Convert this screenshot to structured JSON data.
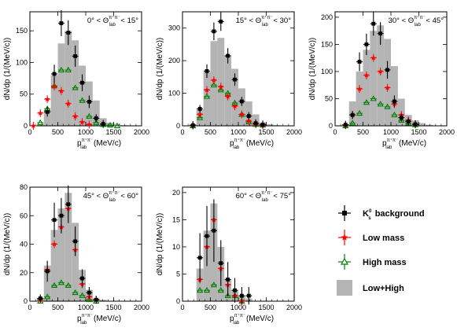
{
  "legend": [
    {
      "key": "ks",
      "label": "K",
      "sub": "s",
      "sup": "0",
      "rest": " background"
    },
    {
      "key": "low",
      "label": "Low mass"
    },
    {
      "key": "high",
      "label": "High mass"
    },
    {
      "key": "sum",
      "label": "Low+High"
    }
  ],
  "colors": {
    "ks": "#000000",
    "low": "#ff0000",
    "high": "#008000",
    "sum": "#b4b4b4"
  },
  "chart_data": [
    {
      "type": "bar",
      "cut": {
        "lo": "0°",
        "hi": "15°"
      },
      "ylabel": "dN/dp (1/(MeV/c))",
      "xlabel": {
        "p": "p",
        "sup": "π⁺π⁻",
        "sub": "lab",
        "unit": "(MeV/c)"
      },
      "xlim": [
        0,
        2000
      ],
      "ylim": [
        0,
        180
      ],
      "xticks": [
        0,
        500,
        1000,
        1500,
        2000
      ],
      "yticks": [
        0,
        50,
        100,
        150
      ],
      "bins": [
        125,
        250,
        375,
        500,
        625,
        750,
        875,
        1000,
        1125,
        1250,
        1375,
        1500,
        1625,
        1750
      ],
      "sum": [
        2,
        25,
        80,
        130,
        150,
        135,
        95,
        70,
        40,
        12,
        5,
        3,
        1
      ],
      "ks": [
        {
          "x": 312,
          "y": 22
        },
        {
          "x": 437,
          "y": 82
        },
        {
          "x": 562,
          "y": 162
        },
        {
          "x": 687,
          "y": 147
        },
        {
          "x": 812,
          "y": 110
        },
        {
          "x": 937,
          "y": 68
        },
        {
          "x": 1062,
          "y": 38
        },
        {
          "x": 1187,
          "y": 12
        },
        {
          "x": 1312,
          "y": 3
        }
      ],
      "low": [
        {
          "x": 62,
          "y": 0
        },
        {
          "x": 187,
          "y": 20
        },
        {
          "x": 312,
          "y": 42
        },
        {
          "x": 437,
          "y": 62
        },
        {
          "x": 562,
          "y": 55
        },
        {
          "x": 687,
          "y": 35
        },
        {
          "x": 812,
          "y": 15
        },
        {
          "x": 937,
          "y": 6
        },
        {
          "x": 1062,
          "y": 2
        }
      ],
      "high": [
        {
          "x": 187,
          "y": 5
        },
        {
          "x": 312,
          "y": 27
        },
        {
          "x": 437,
          "y": 63
        },
        {
          "x": 562,
          "y": 88
        },
        {
          "x": 687,
          "y": 88
        },
        {
          "x": 812,
          "y": 60
        },
        {
          "x": 937,
          "y": 40
        },
        {
          "x": 1062,
          "y": 15
        },
        {
          "x": 1187,
          "y": 5
        },
        {
          "x": 1312,
          "y": 2
        },
        {
          "x": 1437,
          "y": 1
        },
        {
          "x": 1562,
          "y": 0
        }
      ]
    },
    {
      "type": "bar",
      "cut": {
        "lo": "15°",
        "hi": "30°"
      },
      "ylabel": "dN/dp (1/(MeV/c))",
      "xlabel": {
        "p": "p",
        "sup": "π⁺π⁻",
        "sub": "lab",
        "unit": "(MeV/c)"
      },
      "xlim": [
        0,
        2000
      ],
      "ylim": [
        0,
        350
      ],
      "xticks": [
        0,
        500,
        1000,
        1500,
        2000
      ],
      "yticks": [
        0,
        100,
        200,
        300
      ],
      "bins": [
        125,
        250,
        375,
        500,
        625,
        750,
        875,
        1000,
        1125,
        1250,
        1375,
        1500,
        1625,
        1750
      ],
      "sum": [
        5,
        50,
        165,
        260,
        270,
        215,
        175,
        115,
        75,
        35,
        10,
        5,
        2
      ],
      "ks": [
        {
          "x": 187,
          "y": 2
        },
        {
          "x": 312,
          "y": 52
        },
        {
          "x": 437,
          "y": 168
        },
        {
          "x": 562,
          "y": 290
        },
        {
          "x": 687,
          "y": 320
        },
        {
          "x": 812,
          "y": 215
        },
        {
          "x": 937,
          "y": 142
        },
        {
          "x": 1062,
          "y": 75
        },
        {
          "x": 1187,
          "y": 30
        },
        {
          "x": 1312,
          "y": 8
        },
        {
          "x": 1437,
          "y": 4
        }
      ],
      "low": [
        {
          "x": 187,
          "y": 1
        },
        {
          "x": 312,
          "y": 35
        },
        {
          "x": 437,
          "y": 110
        },
        {
          "x": 562,
          "y": 140
        },
        {
          "x": 687,
          "y": 120
        },
        {
          "x": 812,
          "y": 90
        },
        {
          "x": 937,
          "y": 60
        },
        {
          "x": 1062,
          "y": 35
        },
        {
          "x": 1187,
          "y": 15
        },
        {
          "x": 1312,
          "y": 5
        },
        {
          "x": 1437,
          "y": 2
        }
      ],
      "high": [
        {
          "x": 187,
          "y": 0
        },
        {
          "x": 312,
          "y": 25
        },
        {
          "x": 437,
          "y": 90
        },
        {
          "x": 562,
          "y": 125
        },
        {
          "x": 687,
          "y": 110
        },
        {
          "x": 812,
          "y": 100
        },
        {
          "x": 937,
          "y": 70
        },
        {
          "x": 1062,
          "y": 35
        },
        {
          "x": 1187,
          "y": 12
        },
        {
          "x": 1312,
          "y": 4
        },
        {
          "x": 1437,
          "y": 2
        }
      ]
    },
    {
      "type": "bar",
      "cut": {
        "lo": "30°",
        "hi": "45°"
      },
      "ylabel": "dN/dp (1/(MeV/c))",
      "xlabel": {
        "p": "p",
        "sup": "π⁺π⁻",
        "sub": "lab",
        "unit": "(MeV/c)"
      },
      "xlim": [
        0,
        2000
      ],
      "ylim": [
        0,
        210
      ],
      "xticks": [
        0,
        500,
        1000,
        1500,
        2000
      ],
      "yticks": [
        0,
        50,
        100,
        150,
        200
      ],
      "bins": [
        125,
        250,
        375,
        500,
        625,
        750,
        875,
        1000,
        1125,
        1250,
        1375,
        1500,
        1625,
        1750
      ],
      "sum": [
        3,
        45,
        100,
        140,
        175,
        185,
        160,
        110,
        50,
        20,
        10,
        5,
        2
      ],
      "ks": [
        {
          "x": 187,
          "y": 2
        },
        {
          "x": 312,
          "y": 20
        },
        {
          "x": 437,
          "y": 118
        },
        {
          "x": 562,
          "y": 150
        },
        {
          "x": 687,
          "y": 188
        },
        {
          "x": 812,
          "y": 170
        },
        {
          "x": 937,
          "y": 103
        },
        {
          "x": 1062,
          "y": 45
        },
        {
          "x": 1187,
          "y": 15
        },
        {
          "x": 1312,
          "y": 8
        },
        {
          "x": 1437,
          "y": 3
        }
      ],
      "low": [
        {
          "x": 187,
          "y": 1
        },
        {
          "x": 312,
          "y": 20
        },
        {
          "x": 437,
          "y": 68
        },
        {
          "x": 562,
          "y": 93
        },
        {
          "x": 687,
          "y": 125
        },
        {
          "x": 812,
          "y": 100
        },
        {
          "x": 937,
          "y": 70
        },
        {
          "x": 1062,
          "y": 40
        },
        {
          "x": 1187,
          "y": 20
        },
        {
          "x": 1312,
          "y": 10
        },
        {
          "x": 1437,
          "y": 3
        }
      ],
      "high": [
        {
          "x": 187,
          "y": 0
        },
        {
          "x": 312,
          "y": 5
        },
        {
          "x": 437,
          "y": 23
        },
        {
          "x": 562,
          "y": 43
        },
        {
          "x": 687,
          "y": 50
        },
        {
          "x": 812,
          "y": 40
        },
        {
          "x": 937,
          "y": 35
        },
        {
          "x": 1062,
          "y": 20
        },
        {
          "x": 1187,
          "y": 10
        },
        {
          "x": 1312,
          "y": 5
        },
        {
          "x": 1437,
          "y": 2
        }
      ]
    },
    {
      "type": "bar",
      "cut": {
        "lo": "45°",
        "hi": "60°"
      },
      "ylabel": "dN/dp (1/(MeV/c))",
      "xlabel": {
        "p": "p",
        "sup": "π⁺π⁻",
        "sub": "lab",
        "unit": "(MeV/c)"
      },
      "xlim": [
        0,
        2000
      ],
      "ylim": [
        0,
        80
      ],
      "xticks": [
        0,
        500,
        1000,
        1500,
        2000
      ],
      "yticks": [
        0,
        20,
        40,
        60,
        80
      ],
      "bins": [
        125,
        250,
        375,
        500,
        625,
        750,
        875,
        1000,
        1125,
        1250,
        1375
      ],
      "sum": [
        2,
        25,
        50,
        65,
        76,
        55,
        22,
        8,
        2,
        1
      ],
      "ks": [
        {
          "x": 187,
          "y": 2
        },
        {
          "x": 312,
          "y": 21
        },
        {
          "x": 437,
          "y": 57
        },
        {
          "x": 562,
          "y": 60
        },
        {
          "x": 687,
          "y": 68
        },
        {
          "x": 812,
          "y": 42
        },
        {
          "x": 937,
          "y": 16
        },
        {
          "x": 1062,
          "y": 6
        },
        {
          "x": 1187,
          "y": 1
        }
      ],
      "low": [
        {
          "x": 187,
          "y": 1
        },
        {
          "x": 312,
          "y": 22
        },
        {
          "x": 437,
          "y": 40
        },
        {
          "x": 562,
          "y": 52
        },
        {
          "x": 687,
          "y": 65
        },
        {
          "x": 812,
          "y": 36
        },
        {
          "x": 937,
          "y": 12
        },
        {
          "x": 1062,
          "y": 3
        },
        {
          "x": 1187,
          "y": 1
        }
      ],
      "high": [
        {
          "x": 187,
          "y": 0
        },
        {
          "x": 312,
          "y": 3
        },
        {
          "x": 437,
          "y": 11
        },
        {
          "x": 562,
          "y": 13
        },
        {
          "x": 687,
          "y": 11
        },
        {
          "x": 812,
          "y": 6
        },
        {
          "x": 937,
          "y": 4
        },
        {
          "x": 1062,
          "y": 1
        },
        {
          "x": 1187,
          "y": 0
        }
      ]
    },
    {
      "type": "bar",
      "cut": {
        "lo": "60°",
        "hi": "75°"
      },
      "ylabel": "dN/dp (1/(MeV/c))",
      "xlabel": {
        "p": "p",
        "sup": "π⁺π⁻",
        "sub": "lab",
        "unit": "(MeV/c)"
      },
      "xlim": [
        0,
        2000
      ],
      "ylim": [
        0,
        21
      ],
      "xticks": [
        0,
        500,
        1000,
        1500,
        2000
      ],
      "yticks": [
        0,
        5,
        10,
        15,
        20
      ],
      "bins": [
        250,
        375,
        500,
        625,
        750,
        875,
        1000,
        1125,
        1250
      ],
      "sum": [
        6,
        13,
        18,
        10,
        4,
        2,
        1,
        0.5
      ],
      "ks": [
        {
          "x": 312,
          "y": 8
        },
        {
          "x": 437,
          "y": 12
        },
        {
          "x": 562,
          "y": 13
        },
        {
          "x": 687,
          "y": 7
        },
        {
          "x": 812,
          "y": 4
        },
        {
          "x": 937,
          "y": 2
        },
        {
          "x": 1062,
          "y": 1
        },
        {
          "x": 1187,
          "y": 1
        }
      ],
      "low": [
        {
          "x": 312,
          "y": 4
        },
        {
          "x": 437,
          "y": 10
        },
        {
          "x": 562,
          "y": 15
        },
        {
          "x": 687,
          "y": 6
        },
        {
          "x": 812,
          "y": 3
        },
        {
          "x": 937,
          "y": 1
        },
        {
          "x": 1062,
          "y": 0
        }
      ],
      "high": [
        {
          "x": 312,
          "y": 2
        },
        {
          "x": 437,
          "y": 2
        },
        {
          "x": 562,
          "y": 3
        },
        {
          "x": 687,
          "y": 2
        },
        {
          "x": 812,
          "y": 1
        },
        {
          "x": 937,
          "y": 1
        },
        {
          "x": 1062,
          "y": 0
        }
      ]
    }
  ]
}
